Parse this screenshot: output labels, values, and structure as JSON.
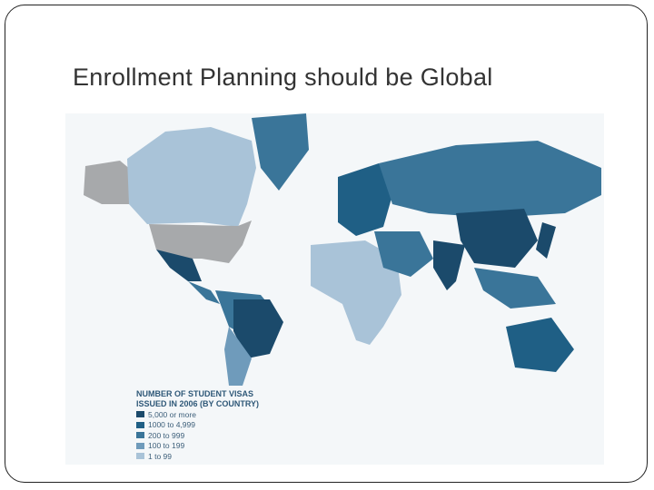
{
  "slide": {
    "title": "Enrollment Planning should be Global"
  },
  "map": {
    "legend": {
      "title_line1": "NUMBER OF STUDENT VISAS",
      "title_line2": "ISSUED IN 2006 (BY COUNTRY)",
      "items": [
        {
          "label": "5,000 or more",
          "color": "#1b4a6b"
        },
        {
          "label": "1000 to 4,999",
          "color": "#1f5f85"
        },
        {
          "label": "200 to 999",
          "color": "#3a7599"
        },
        {
          "label": "100 to 199",
          "color": "#6f9bbb"
        },
        {
          "label": "1 to 99",
          "color": "#a9c3d8"
        }
      ]
    },
    "no_data_color": "#a7a9ab"
  }
}
